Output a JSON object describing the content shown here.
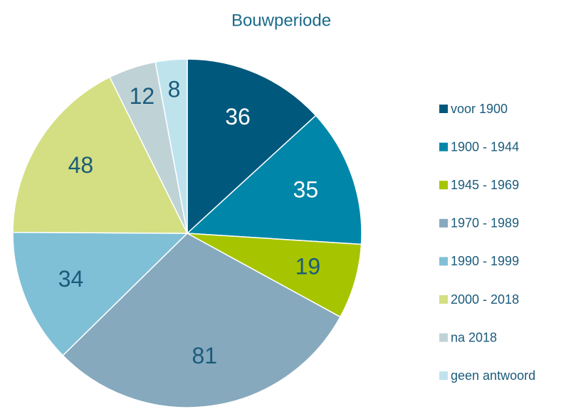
{
  "chart_data": {
    "type": "pie",
    "title": "Bouwperiode",
    "categories": [
      "voor 1900",
      "1900 - 1944",
      "1945 - 1969",
      "1970 - 1989",
      "1990 - 1999",
      "2000 - 2018",
      "na 2018",
      "geen antwoord"
    ],
    "values": [
      36,
      35,
      19,
      81,
      34,
      48,
      12,
      8
    ],
    "colors": [
      "#00587c",
      "#0086a9",
      "#a6c400",
      "#86a9be",
      "#80c0d6",
      "#d3df82",
      "#bfd3d7",
      "#bfe3ed"
    ],
    "label_colors": [
      "#ffffff",
      "#ffffff",
      "#1b5b7b",
      "#1b5b7b",
      "#1b5b7b",
      "#1b5b7b",
      "#1b5b7b",
      "#1b5b7b"
    ],
    "legend": "right"
  }
}
